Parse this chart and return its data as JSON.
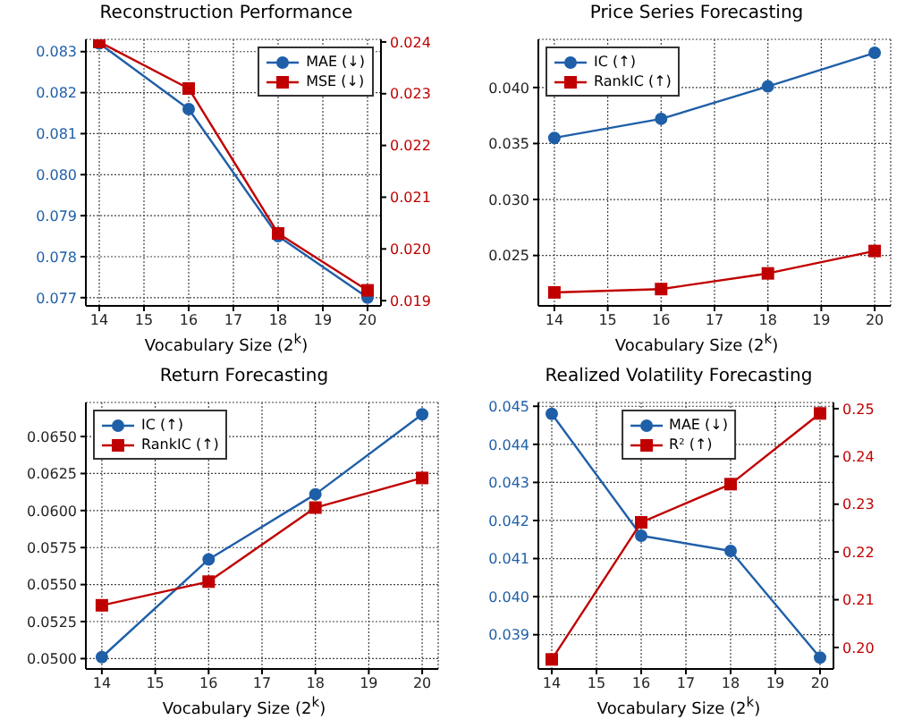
{
  "chart_data": [
    {
      "type": "line",
      "title": "Reconstruction Performance",
      "xlabel": "Vocabulary Size (2$^{k}$)",
      "x": [
        14,
        16,
        18,
        20
      ],
      "xlim": [
        13.7,
        20.3
      ],
      "xticks": [
        14,
        15,
        16,
        17,
        18,
        19,
        20
      ],
      "series": [
        {
          "name": "MAE (↓)",
          "color": "#1f5fa8",
          "marker": "circle",
          "values": [
            0.0832,
            0.0816,
            0.0785,
            0.077
          ]
        },
        {
          "name": "MSE (↓)",
          "color": "#c00000",
          "marker": "square",
          "axis": "y2",
          "values": [
            0.024,
            0.0231,
            0.0203,
            0.0192
          ]
        }
      ],
      "ylim": [
        0.0768,
        0.0833
      ],
      "yticks": [
        0.077,
        0.078,
        0.079,
        {
          "value": 0.08,
          "label": "0.080"
        },
        0.081,
        0.082,
        0.083
      ],
      "y2lim": [
        0.0189,
        0.02405
      ],
      "y2ticks": [
        0.019,
        {
          "value": 0.02,
          "label": "0.020"
        },
        0.021,
        0.022,
        0.023,
        0.024
      ],
      "grid": true,
      "legend": "top right"
    },
    {
      "type": "line",
      "title": "Price Series Forecasting",
      "xlabel": "Vocabulary Size (2$^{k}$)",
      "x": [
        14,
        16,
        18,
        20
      ],
      "xlim": [
        13.7,
        20.3
      ],
      "xticks": [
        14,
        15,
        16,
        17,
        18,
        19,
        20
      ],
      "series": [
        {
          "name": "IC (↑)",
          "color": "#1f5fa8",
          "marker": "circle",
          "values": [
            0.0355,
            0.0372,
            0.0401,
            0.0431
          ]
        },
        {
          "name": "RankIC (↑)",
          "color": "#c00000",
          "marker": "square",
          "values": [
            0.0217,
            0.022,
            0.0234,
            0.0254
          ]
        }
      ],
      "ylim": [
        0.0205,
        0.0443
      ],
      "yticks": [
        0.025,
        {
          "value": 0.03,
          "label": "0.030"
        },
        0.035,
        {
          "value": 0.04,
          "label": "0.040"
        }
      ],
      "grid": true,
      "legend": "top left"
    },
    {
      "type": "line",
      "title": "Return Forecasting",
      "xlabel": "Vocabulary Size (2$^{k}$)",
      "x": [
        14,
        16,
        18,
        20
      ],
      "xlim": [
        13.7,
        20.3
      ],
      "xticks": [
        14,
        15,
        16,
        17,
        18,
        19,
        20
      ],
      "series": [
        {
          "name": "IC (↑)",
          "color": "#1f5fa8",
          "marker": "circle",
          "values": [
            0.0501,
            0.0567,
            0.0611,
            0.0665
          ]
        },
        {
          "name": "RankIC (↑)",
          "color": "#c00000",
          "marker": "square",
          "values": [
            0.0536,
            0.0552,
            0.0602,
            0.0622
          ]
        }
      ],
      "ylim": [
        0.0493,
        0.0673
      ],
      "yticks": [
        {
          "value": 0.05,
          "label": "0.0500"
        },
        0.0525,
        {
          "value": 0.055,
          "label": "0.0550"
        },
        0.0575,
        {
          "value": 0.06,
          "label": "0.0600"
        },
        0.0625,
        {
          "value": 0.065,
          "label": "0.0650"
        }
      ],
      "grid": true,
      "legend": "top left"
    },
    {
      "type": "line",
      "title": "Realized Volatility Forecasting",
      "xlabel": "Vocabulary Size (2$^{k}$)",
      "x": [
        14,
        16,
        18,
        20
      ],
      "xlim": [
        13.7,
        20.3
      ],
      "xticks": [
        14,
        15,
        16,
        17,
        18,
        19,
        20
      ],
      "series": [
        {
          "name": "MAE (↓)",
          "color": "#1f5fa8",
          "marker": "circle",
          "values": [
            0.0448,
            0.0416,
            0.0412,
            0.0384
          ]
        },
        {
          "name": "R² (↑)",
          "color": "#c00000",
          "marker": "square",
          "axis": "y2",
          "values": [
            0.1975,
            0.2262,
            0.2342,
            0.249
          ]
        }
      ],
      "ylim": [
        0.0381,
        0.0451
      ],
      "yticks": [
        0.039,
        {
          "value": 0.04,
          "label": "0.040"
        },
        0.041,
        0.042,
        0.043,
        0.044,
        0.045
      ],
      "y2lim": [
        0.1955,
        0.2513
      ],
      "y2ticks": [
        {
          "value": 0.2,
          "label": "0.20"
        },
        0.21,
        0.22,
        0.23,
        0.24,
        0.25
      ],
      "grid": true,
      "legend": "top"
    }
  ]
}
